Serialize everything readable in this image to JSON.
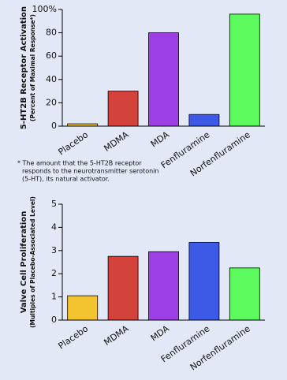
{
  "chart_data": [
    {
      "type": "bar",
      "y_label": [
        "5-HT2B Receptor Activation",
        "(Percent of Maximal Response*)"
      ],
      "categories": [
        "Placebo",
        "MDMA",
        "MDA",
        "Fenfluramine",
        "Norfenfluramine"
      ],
      "values": [
        2,
        30,
        80,
        10,
        96
      ],
      "colors": [
        "#f4c430",
        "#d4423c",
        "#9c40e6",
        "#3c5ae6",
        "#5cfa5c"
      ],
      "ylim": [
        0,
        100
      ],
      "yticks": [
        0,
        20,
        40,
        60,
        80,
        {
          "value": 100,
          "label": "100%"
        }
      ],
      "annotations": [
        "* The amount that the 5-HT2B receptor",
        "responds to the neurotransmitter serotonin",
        "(5-HT), its natural activator."
      ]
    },
    {
      "type": "bar",
      "y_label": [
        "Valve Cell Proliferation",
        "(Multiples of Placebo-Associated Level)"
      ],
      "categories": [
        "Placebo",
        "MDMA",
        "MDA",
        "Fenfluramine",
        "Norfenfluramine"
      ],
      "values": [
        1.05,
        2.75,
        2.95,
        3.35,
        2.25
      ],
      "colors": [
        "#f4c430",
        "#d4423c",
        "#9c40e6",
        "#3c5ae6",
        "#5cfa5c"
      ],
      "ylim": [
        0,
        5
      ],
      "yticks": [
        0,
        1,
        2,
        3,
        4,
        5
      ]
    }
  ]
}
